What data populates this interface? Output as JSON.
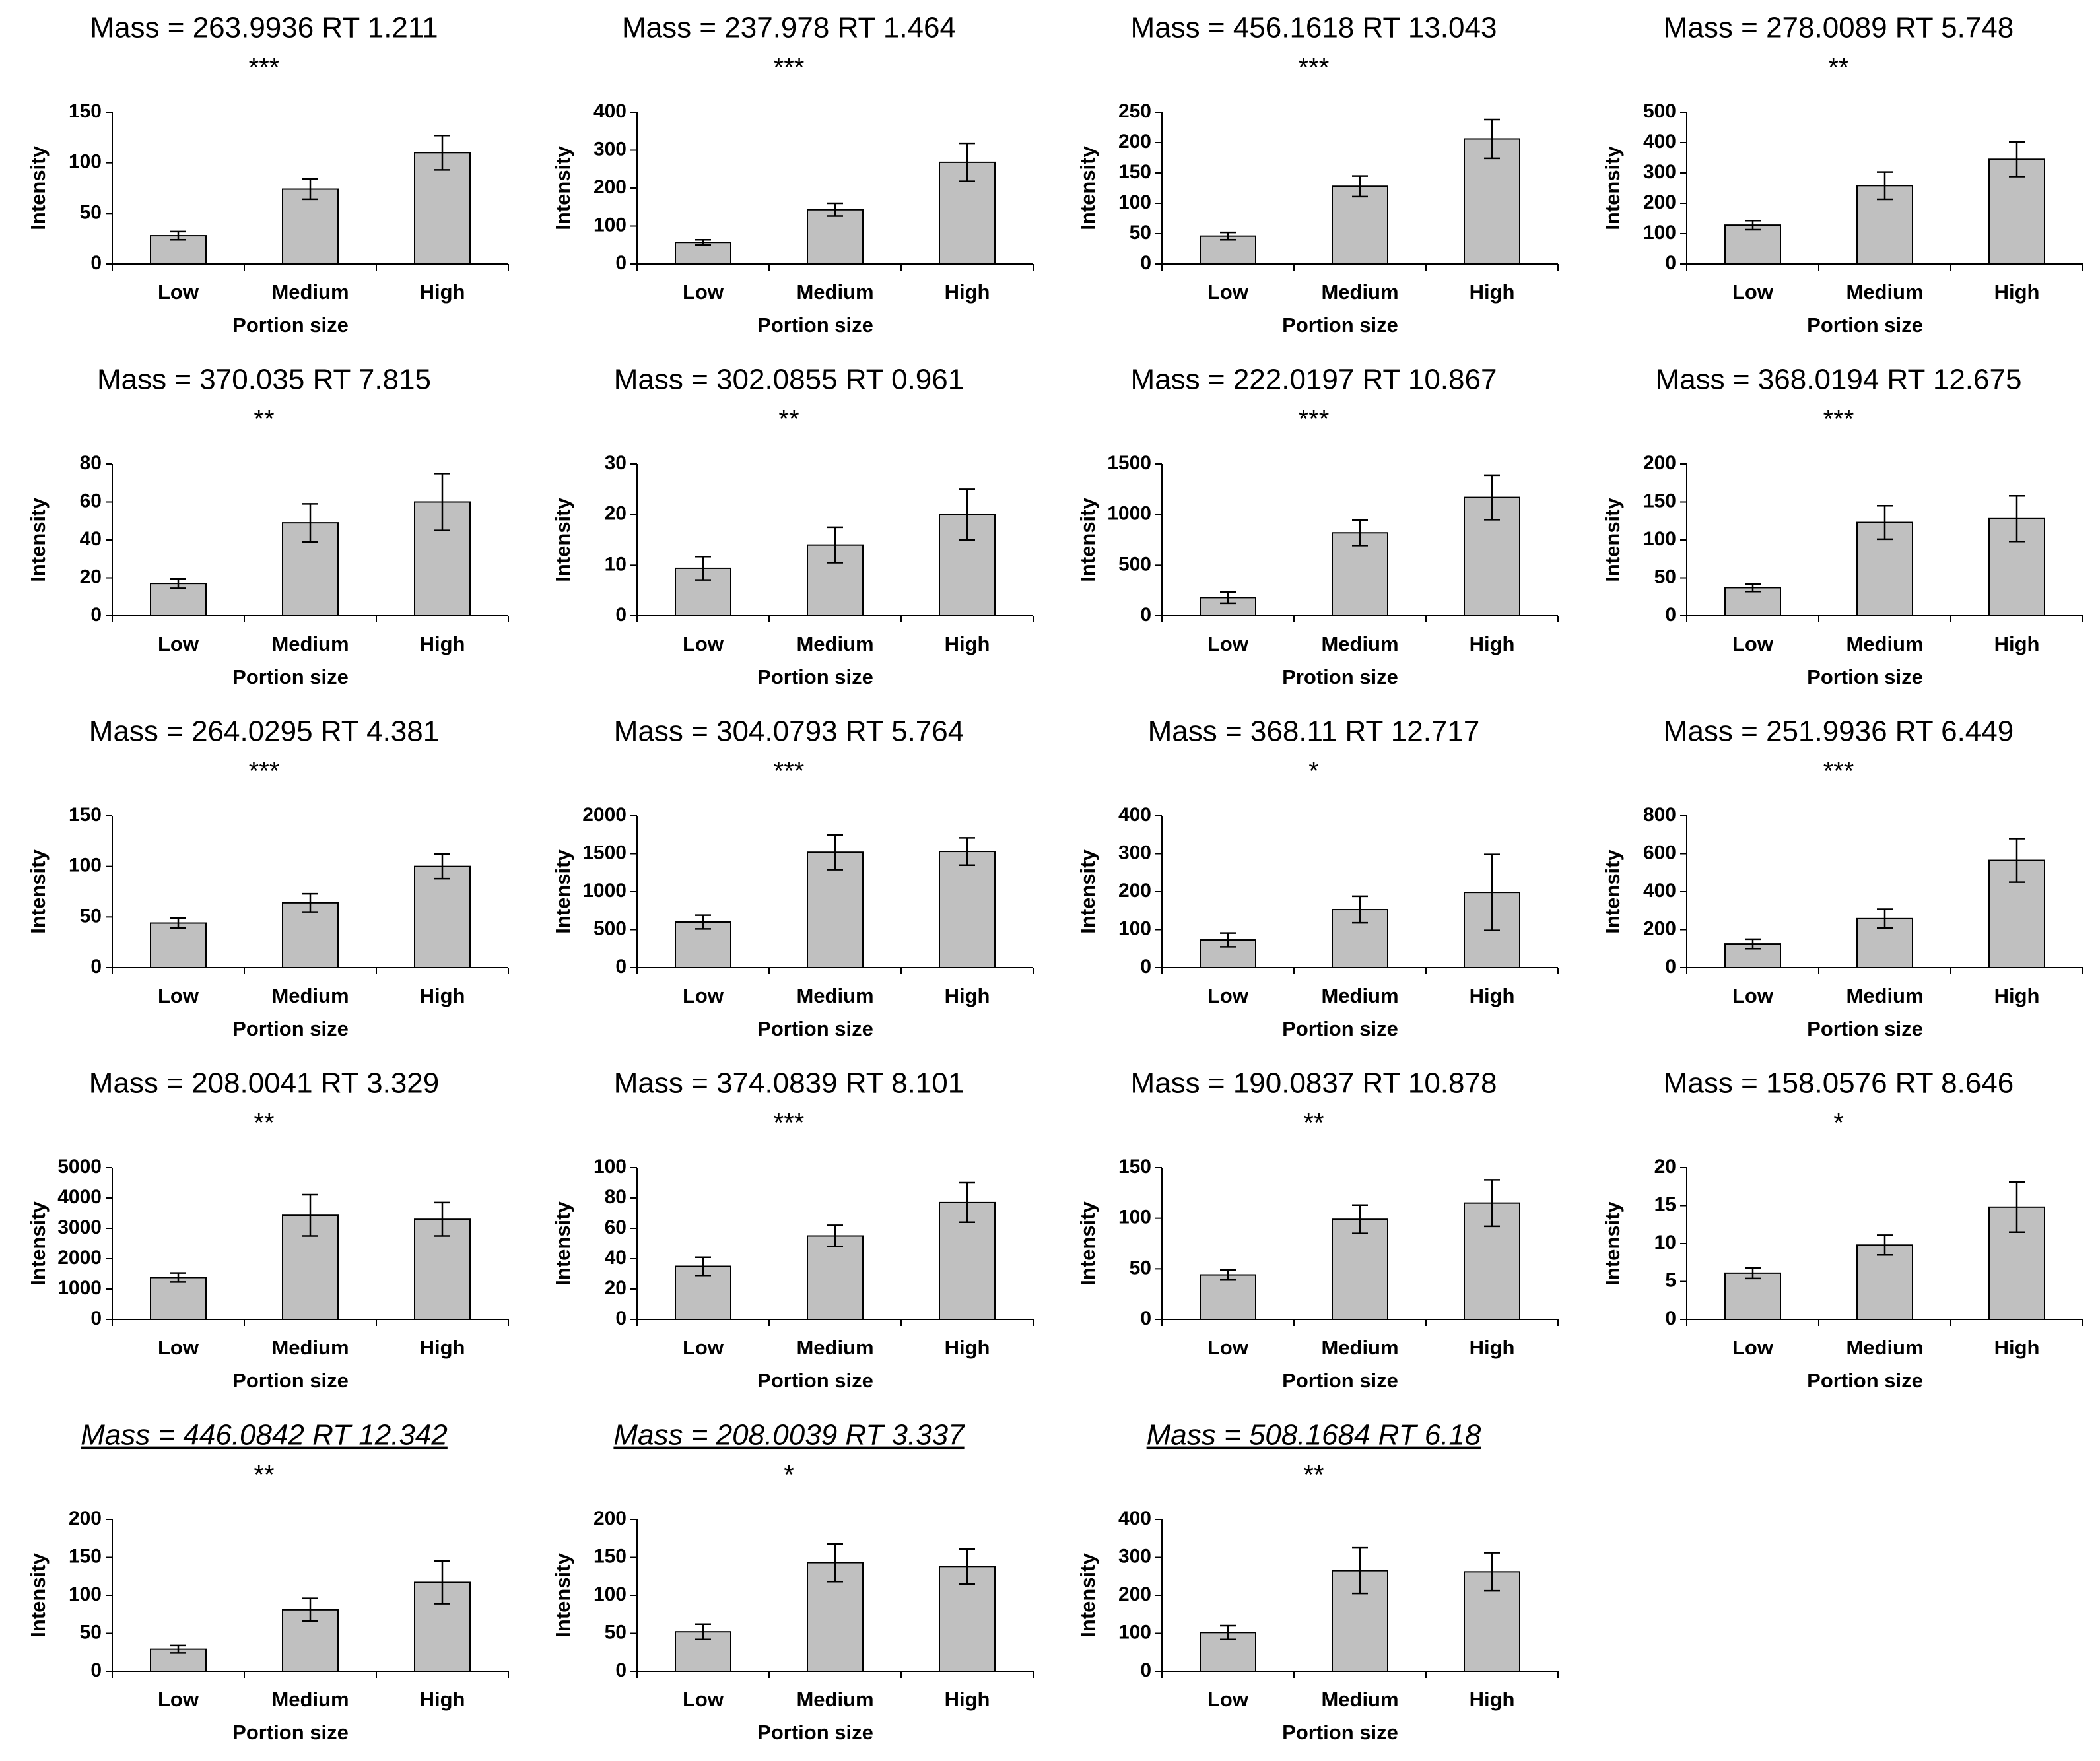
{
  "chart_data": [
    {
      "type": "bar",
      "title": "Mass = 263.9936 RT 1.211",
      "subtitle": "***",
      "xlabel": "Portion size",
      "ylabel": "Intensity",
      "categories": [
        "Low",
        "Medium",
        "High"
      ],
      "values": [
        28,
        74,
        110
      ],
      "errors": [
        4,
        10,
        17
      ],
      "color": "#c0c0c0",
      "ylim": [
        0,
        150
      ],
      "yticks": [
        0,
        50,
        100,
        150
      ]
    },
    {
      "type": "bar",
      "title": "Mass = 237.978 RT 1.464",
      "subtitle": "***",
      "xlabel": "Portion size",
      "ylabel": "Intensity",
      "categories": [
        "Low",
        "Medium",
        "High"
      ],
      "values": [
        57,
        143,
        268
      ],
      "errors": [
        7,
        17,
        50
      ],
      "color": "#c0c0c0",
      "ylim": [
        0,
        400
      ],
      "yticks": [
        0,
        100,
        200,
        300,
        400
      ]
    },
    {
      "type": "bar",
      "title": "Mass = 456.1618 RT 13.043",
      "subtitle": "***",
      "xlabel": "Portion size",
      "ylabel": "Intensity",
      "categories": [
        "Low",
        "Medium",
        "High"
      ],
      "values": [
        46,
        128,
        206
      ],
      "errors": [
        6,
        17,
        32
      ],
      "color": "#c0c0c0",
      "ylim": [
        0,
        250
      ],
      "yticks": [
        0,
        50,
        100,
        150,
        200,
        250
      ]
    },
    {
      "type": "bar",
      "title": "Mass = 278.0089 RT 5.748",
      "subtitle": "**",
      "xlabel": "Portion size",
      "ylabel": "Intensity",
      "categories": [
        "Low",
        "Medium",
        "High"
      ],
      "values": [
        128,
        258,
        345
      ],
      "errors": [
        15,
        45,
        57
      ],
      "color": "#c0c0c0",
      "ylim": [
        0,
        500
      ],
      "yticks": [
        0,
        100,
        200,
        300,
        400,
        500
      ]
    },
    {
      "type": "bar",
      "title": "Mass = 370.035 RT 7.815",
      "subtitle": "**",
      "xlabel": "Portion size",
      "ylabel": "Intensity",
      "categories": [
        "Low",
        "Medium",
        "High"
      ],
      "values": [
        17,
        49,
        60
      ],
      "errors": [
        2.5,
        10,
        15
      ],
      "color": "#c0c0c0",
      "ylim": [
        0,
        80
      ],
      "yticks": [
        0,
        20,
        40,
        60,
        80
      ]
    },
    {
      "type": "bar",
      "title": "Mass = 302.0855 RT 0.961",
      "subtitle": "**",
      "xlabel": "Portion size",
      "ylabel": "Intensity",
      "categories": [
        "Low",
        "Medium",
        "High"
      ],
      "values": [
        9.4,
        14,
        20
      ],
      "errors": [
        2.3,
        3.5,
        5
      ],
      "color": "#c0c0c0",
      "ylim": [
        0,
        30
      ],
      "yticks": [
        0,
        10,
        20,
        30
      ]
    },
    {
      "type": "bar",
      "title": "Mass = 222.0197 RT 10.867",
      "subtitle": "***",
      "xlabel": "Protion size",
      "ylabel": "Intensity",
      "categories": [
        "Low",
        "Medium",
        "High"
      ],
      "values": [
        180,
        820,
        1170
      ],
      "errors": [
        55,
        125,
        220
      ],
      "color": "#c0c0c0",
      "ylim": [
        0,
        1500
      ],
      "yticks": [
        0,
        500,
        1000,
        1500
      ]
    },
    {
      "type": "bar",
      "title": "Mass = 368.0194 RT 12.675",
      "subtitle": "***",
      "xlabel": "Portion size",
      "ylabel": "Intensity",
      "categories": [
        "Low",
        "Medium",
        "High"
      ],
      "values": [
        37,
        123,
        128
      ],
      "errors": [
        5,
        22,
        30
      ],
      "color": "#c0c0c0",
      "ylim": [
        0,
        200
      ],
      "yticks": [
        0,
        50,
        100,
        150,
        200
      ]
    },
    {
      "type": "bar",
      "title": "Mass = 264.0295 RT 4.381",
      "subtitle": "***",
      "xlabel": "Portion size",
      "ylabel": "Intensity",
      "categories": [
        "Low",
        "Medium",
        "High"
      ],
      "values": [
        44,
        64,
        100
      ],
      "errors": [
        5,
        9,
        12
      ],
      "color": "#c0c0c0",
      "ylim": [
        0,
        150
      ],
      "yticks": [
        0,
        50,
        100,
        150
      ]
    },
    {
      "type": "bar",
      "title": "Mass = 304.0793 RT 5.764",
      "subtitle": "***",
      "xlabel": "Portion size",
      "ylabel": "Intensity",
      "categories": [
        "Low",
        "Medium",
        "High"
      ],
      "values": [
        600,
        1520,
        1530
      ],
      "errors": [
        90,
        230,
        180
      ],
      "color": "#c0c0c0",
      "ylim": [
        0,
        2000
      ],
      "yticks": [
        0,
        500,
        1000,
        1500,
        2000
      ]
    },
    {
      "type": "bar",
      "title": "Mass = 368.11 RT 12.717",
      "subtitle": "*",
      "xlabel": "Portion size",
      "ylabel": "Intensity",
      "categories": [
        "Low",
        "Medium",
        "High"
      ],
      "values": [
        73,
        153,
        198
      ],
      "errors": [
        18,
        35,
        100
      ],
      "color": "#c0c0c0",
      "ylim": [
        0,
        400
      ],
      "yticks": [
        0,
        100,
        200,
        300,
        400
      ]
    },
    {
      "type": "bar",
      "title": "Mass = 251.9936 RT 6.449",
      "subtitle": "***",
      "xlabel": "Portion size",
      "ylabel": "Intensity",
      "categories": [
        "Low",
        "Medium",
        "High"
      ],
      "values": [
        125,
        258,
        565
      ],
      "errors": [
        25,
        50,
        115
      ],
      "color": "#c0c0c0",
      "ylim": [
        0,
        800
      ],
      "yticks": [
        0,
        200,
        400,
        600,
        800
      ]
    },
    {
      "type": "bar",
      "title": "Mass = 208.0041 RT 3.329",
      "subtitle": "**",
      "xlabel": "Portion size",
      "ylabel": "Intensity",
      "categories": [
        "Low",
        "Medium",
        "High"
      ],
      "values": [
        1380,
        3430,
        3300
      ],
      "errors": [
        150,
        680,
        550
      ],
      "color": "#c0c0c0",
      "ylim": [
        0,
        5000
      ],
      "yticks": [
        0,
        1000,
        2000,
        3000,
        4000,
        5000
      ]
    },
    {
      "type": "bar",
      "title": "Mass = 374.0839 RT 8.101",
      "subtitle": "***",
      "xlabel": "Portion size",
      "ylabel": "Intensity",
      "categories": [
        "Low",
        "Medium",
        "High"
      ],
      "values": [
        35,
        55,
        77
      ],
      "errors": [
        6,
        7,
        13
      ],
      "color": "#c0c0c0",
      "ylim": [
        0,
        100
      ],
      "yticks": [
        0,
        20,
        40,
        60,
        80,
        100
      ]
    },
    {
      "type": "bar",
      "title": "Mass = 190.0837 RT 10.878",
      "subtitle": "**",
      "xlabel": "Portion size",
      "ylabel": "Intensity",
      "categories": [
        "Low",
        "Medium",
        "High"
      ],
      "values": [
        44,
        99,
        115
      ],
      "errors": [
        5,
        14,
        23
      ],
      "color": "#c0c0c0",
      "ylim": [
        0,
        150
      ],
      "yticks": [
        0,
        50,
        100,
        150
      ]
    },
    {
      "type": "bar",
      "title": "Mass = 158.0576 RT 8.646",
      "subtitle": "*",
      "xlabel": "Portion size",
      "ylabel": "Intensity",
      "categories": [
        "Low",
        "Medium",
        "High"
      ],
      "values": [
        6.1,
        9.8,
        14.8
      ],
      "errors": [
        0.7,
        1.3,
        3.3
      ],
      "color": "#c0c0c0",
      "ylim": [
        0,
        20
      ],
      "yticks": [
        0,
        5,
        10,
        15,
        20
      ]
    },
    {
      "type": "bar",
      "title": "Mass = 446.0842 RT 12.342",
      "subtitle": "**",
      "title_italic": true,
      "xlabel": "Portion size",
      "ylabel": "Intensity",
      "categories": [
        "Low",
        "Medium",
        "High"
      ],
      "values": [
        29,
        81,
        117
      ],
      "errors": [
        5,
        15,
        28
      ],
      "color": "#c0c0c0",
      "ylim": [
        0,
        200
      ],
      "yticks": [
        0,
        50,
        100,
        150,
        200
      ]
    },
    {
      "type": "bar",
      "title": "Mass = 208.0039 RT 3.337",
      "subtitle": "*",
      "title_italic": true,
      "xlabel": "Portion size",
      "ylabel": "Intensity",
      "categories": [
        "Low",
        "Medium",
        "High"
      ],
      "values": [
        52,
        143,
        138
      ],
      "errors": [
        10,
        25,
        23
      ],
      "color": "#c0c0c0",
      "ylim": [
        0,
        200
      ],
      "yticks": [
        0,
        50,
        100,
        150,
        200
      ]
    },
    {
      "type": "bar",
      "title": "Mass = 508.1684 RT 6.18",
      "subtitle": "**",
      "title_italic": true,
      "xlabel": "Portion size",
      "ylabel": "Intensity",
      "categories": [
        "Low",
        "Medium",
        "High"
      ],
      "values": [
        102,
        265,
        262
      ],
      "errors": [
        18,
        60,
        50
      ],
      "color": "#c0c0c0",
      "ylim": [
        0,
        400
      ],
      "yticks": [
        0,
        100,
        200,
        300,
        400
      ]
    }
  ]
}
